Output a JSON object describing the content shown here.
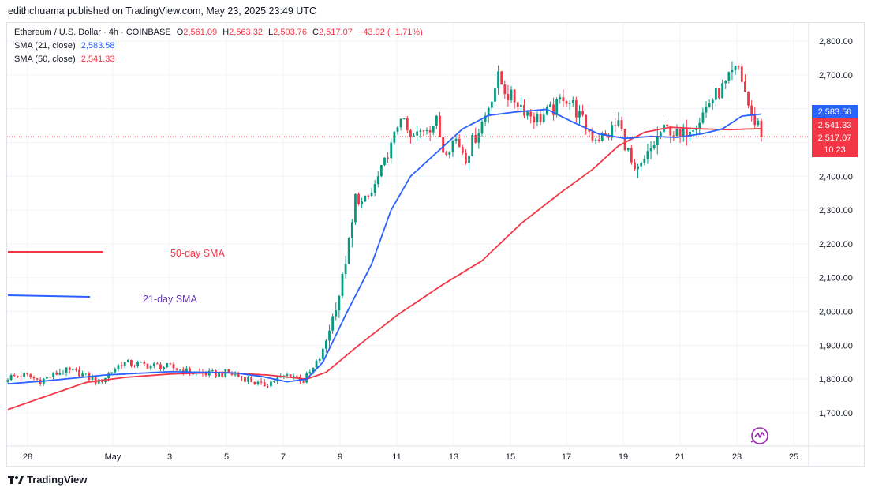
{
  "header": {
    "publisher": "edithchuama published on TradingView.com, May 23, 2025 23:49 UTC"
  },
  "legend": {
    "symbol": "Ethereum / U.S. Dollar · 4h · COINBASE",
    "o_label": "O",
    "o_value": "2,561.09",
    "h_label": "H",
    "h_value": "2,563.32",
    "l_label": "L",
    "l_value": "2,503.76",
    "c_label": "C",
    "c_value": "2,517.07",
    "change": "−43.92 (−1.71%)",
    "sma21_label": "SMA (21, close)",
    "sma21_value": "2,583.58",
    "sma50_label": "SMA (50, close)",
    "sma50_value": "2,541.33"
  },
  "price_tags": {
    "sma21": "2,583.58",
    "sma50": "2,541.33",
    "price": "2,517.07",
    "countdown": "10:23"
  },
  "annotations": {
    "sma50_label": "50-day SMA",
    "sma21_label": "21-day SMA"
  },
  "footer": {
    "brand": "TradingView"
  },
  "colors": {
    "up": "#089981",
    "down": "#f23645",
    "sma21": "#2962ff",
    "sma50": "#f23645"
  },
  "chart_data": {
    "type": "candlestick",
    "interval": "4h",
    "ylim": [
      1620,
      2860
    ],
    "y_ticks": [
      1700,
      1800,
      1900,
      2000,
      2100,
      2200,
      2300,
      2400,
      2500,
      2600,
      2700,
      2800
    ],
    "y_tick_labels": [
      "1,700.00",
      "1,800.00",
      "1,900.00",
      "2,000.00",
      "2,100.00",
      "2,200.00",
      "2,300.00",
      "2,400.00",
      "2,500.00",
      "2,600.00",
      "2,700.00",
      "2,800.00"
    ],
    "x_ticks": [
      "28",
      "May",
      "3",
      "5",
      "7",
      "9",
      "11",
      "13",
      "15",
      "17",
      "19",
      "21",
      "23",
      "25"
    ],
    "last_price": 2517.07,
    "sma21_anchors": [
      [
        0,
        1786
      ],
      [
        12,
        1795
      ],
      [
        30,
        1812
      ],
      [
        50,
        1822
      ],
      [
        70,
        1818
      ],
      [
        78,
        1808
      ],
      [
        86,
        1792
      ],
      [
        92,
        1800
      ],
      [
        97,
        1850
      ],
      [
        104,
        1990
      ],
      [
        112,
        2140
      ],
      [
        118,
        2300
      ],
      [
        124,
        2400
      ],
      [
        132,
        2470
      ],
      [
        140,
        2540
      ],
      [
        148,
        2580
      ],
      [
        156,
        2590
      ],
      [
        166,
        2598
      ],
      [
        174,
        2560
      ],
      [
        182,
        2525
      ],
      [
        190,
        2512
      ],
      [
        198,
        2518
      ],
      [
        206,
        2515
      ],
      [
        214,
        2526
      ],
      [
        220,
        2540
      ],
      [
        226,
        2578
      ],
      [
        232,
        2584
      ]
    ],
    "sma50_anchors": [
      [
        0,
        1710
      ],
      [
        12,
        1750
      ],
      [
        24,
        1790
      ],
      [
        36,
        1805
      ],
      [
        50,
        1815
      ],
      [
        66,
        1820
      ],
      [
        80,
        1812
      ],
      [
        92,
        1800
      ],
      [
        98,
        1820
      ],
      [
        108,
        1900
      ],
      [
        120,
        1990
      ],
      [
        134,
        2080
      ],
      [
        146,
        2150
      ],
      [
        158,
        2260
      ],
      [
        170,
        2350
      ],
      [
        180,
        2420
      ],
      [
        188,
        2490
      ],
      [
        196,
        2530
      ],
      [
        204,
        2545
      ],
      [
        214,
        2540
      ],
      [
        222,
        2538
      ],
      [
        232,
        2541
      ]
    ],
    "price_anchors": [
      [
        0,
        1805
      ],
      [
        5,
        1812
      ],
      [
        10,
        1795
      ],
      [
        17,
        1825
      ],
      [
        22,
        1818
      ],
      [
        28,
        1790
      ],
      [
        35,
        1848
      ],
      [
        42,
        1842
      ],
      [
        50,
        1835
      ],
      [
        56,
        1820
      ],
      [
        62,
        1815
      ],
      [
        68,
        1818
      ],
      [
        74,
        1800
      ],
      [
        78,
        1780
      ],
      [
        83,
        1800
      ],
      [
        87,
        1815
      ],
      [
        91,
        1795
      ],
      [
        94,
        1830
      ],
      [
        97,
        1880
      ],
      [
        99,
        1950
      ],
      [
        102,
        2050
      ],
      [
        104,
        2150
      ],
      [
        106,
        2260
      ],
      [
        107,
        2340
      ],
      [
        109,
        2320
      ],
      [
        112,
        2350
      ],
      [
        115,
        2420
      ],
      [
        118,
        2490
      ],
      [
        121,
        2580
      ],
      [
        124,
        2510
      ],
      [
        128,
        2540
      ],
      [
        132,
        2560
      ],
      [
        134,
        2480
      ],
      [
        138,
        2510
      ],
      [
        141,
        2460
      ],
      [
        144,
        2520
      ],
      [
        147,
        2580
      ],
      [
        149,
        2640
      ],
      [
        151,
        2690
      ],
      [
        154,
        2640
      ],
      [
        157,
        2620
      ],
      [
        160,
        2590
      ],
      [
        163,
        2570
      ],
      [
        166,
        2585
      ],
      [
        169,
        2605
      ],
      [
        171,
        2640
      ],
      [
        174,
        2610
      ],
      [
        177,
        2560
      ],
      [
        180,
        2520
      ],
      [
        184,
        2515
      ],
      [
        188,
        2560
      ],
      [
        191,
        2470
      ],
      [
        193,
        2400
      ],
      [
        196,
        2440
      ],
      [
        198,
        2480
      ],
      [
        201,
        2530
      ],
      [
        204,
        2540
      ],
      [
        207,
        2510
      ],
      [
        210,
        2550
      ],
      [
        213,
        2570
      ],
      [
        216,
        2620
      ],
      [
        219,
        2650
      ],
      [
        221,
        2670
      ],
      [
        223,
        2700
      ],
      [
        225,
        2720
      ],
      [
        227,
        2650
      ],
      [
        229,
        2570
      ],
      [
        231,
        2560
      ],
      [
        232,
        2517
      ]
    ]
  }
}
